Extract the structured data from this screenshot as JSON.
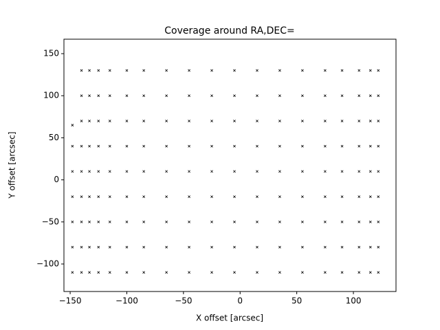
{
  "chart_data": {
    "type": "scatter",
    "title": "Coverage around RA,DEC=",
    "x_label": "X offset [arcsec]",
    "y_label": "Y offset [arcsec]",
    "color": "#000000",
    "xlim": [
      -155.5,
      137.6
    ],
    "ylim": [
      -132.7,
      167.2
    ],
    "xticks": [
      {
        "value": -150,
        "label": "−150"
      },
      {
        "value": -100,
        "label": "−100"
      },
      {
        "value": -50,
        "label": "−50"
      },
      0,
      50,
      100
    ],
    "yticks": [
      {
        "value": -100,
        "label": "−100"
      },
      {
        "value": -50,
        "label": "−50"
      },
      0,
      50,
      100,
      150
    ],
    "x": [
      -148,
      -148,
      -148,
      -148,
      -148,
      -148,
      -148,
      -140,
      -140,
      -140,
      -140,
      -140,
      -140,
      -140,
      -140,
      -140,
      -133,
      -133,
      -133,
      -133,
      -133,
      -133,
      -133,
      -133,
      -133,
      -125,
      -125,
      -125,
      -125,
      -125,
      -125,
      -125,
      -125,
      -125,
      -115,
      -115,
      -115,
      -115,
      -115,
      -115,
      -115,
      -115,
      -115,
      -100,
      -100,
      -100,
      -100,
      -100,
      -100,
      -100,
      -100,
      -100,
      -85,
      -85,
      -85,
      -85,
      -85,
      -85,
      -85,
      -85,
      -85,
      -65,
      -65,
      -65,
      -65,
      -65,
      -65,
      -65,
      -65,
      -65,
      -45,
      -45,
      -45,
      -45,
      -45,
      -45,
      -45,
      -45,
      -45,
      -25,
      -25,
      -25,
      -25,
      -25,
      -25,
      -25,
      -25,
      -25,
      -5,
      -5,
      -5,
      -5,
      -5,
      -5,
      -5,
      -5,
      -5,
      15,
      15,
      15,
      15,
      15,
      15,
      15,
      15,
      15,
      35,
      35,
      35,
      35,
      35,
      35,
      35,
      35,
      35,
      55,
      55,
      55,
      55,
      55,
      55,
      55,
      55,
      55,
      75,
      75,
      75,
      75,
      75,
      75,
      75,
      75,
      75,
      90,
      90,
      90,
      90,
      90,
      90,
      90,
      90,
      90,
      105,
      105,
      105,
      105,
      105,
      105,
      105,
      105,
      105,
      115,
      115,
      115,
      115,
      115,
      115,
      115,
      115,
      115,
      122,
      122,
      122,
      122,
      122,
      122,
      122,
      122,
      122
    ],
    "y": [
      -110,
      -80,
      -50,
      -20,
      10,
      40,
      65,
      -110,
      -80,
      -50,
      -20,
      10,
      40,
      70,
      100,
      130,
      -110,
      -80,
      -50,
      -20,
      10,
      40,
      70,
      100,
      130,
      -110,
      -80,
      -50,
      -20,
      10,
      40,
      70,
      100,
      130,
      -110,
      -80,
      -50,
      -20,
      10,
      40,
      70,
      100,
      130,
      -110,
      -80,
      -50,
      -20,
      10,
      40,
      70,
      100,
      130,
      -110,
      -80,
      -50,
      -20,
      10,
      40,
      70,
      100,
      130,
      -110,
      -80,
      -50,
      -20,
      10,
      40,
      70,
      100,
      130,
      -110,
      -80,
      -50,
      -20,
      10,
      40,
      70,
      100,
      130,
      -110,
      -80,
      -50,
      -20,
      10,
      40,
      70,
      100,
      130,
      -110,
      -80,
      -50,
      -20,
      10,
      40,
      70,
      100,
      130,
      -110,
      -80,
      -50,
      -20,
      10,
      40,
      70,
      100,
      130,
      -110,
      -80,
      -50,
      -20,
      10,
      40,
      70,
      100,
      130,
      -110,
      -80,
      -50,
      -20,
      10,
      40,
      70,
      100,
      130,
      -110,
      -80,
      -50,
      -20,
      10,
      40,
      70,
      100,
      130,
      -110,
      -80,
      -50,
      -20,
      10,
      40,
      70,
      100,
      130,
      -110,
      -80,
      -50,
      -20,
      10,
      40,
      70,
      100,
      130,
      -110,
      -80,
      -50,
      -20,
      10,
      40,
      70,
      100,
      130,
      -110,
      -80,
      -50,
      -20,
      10,
      40,
      70,
      100,
      130
    ]
  }
}
